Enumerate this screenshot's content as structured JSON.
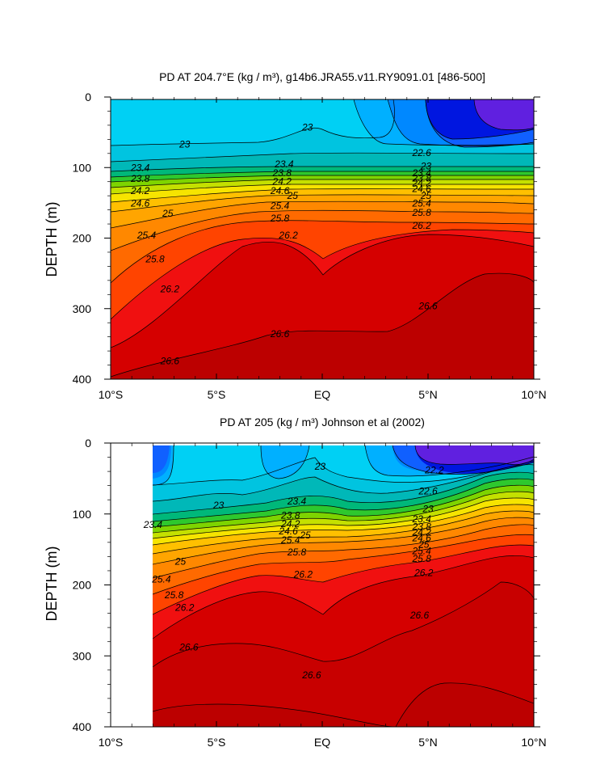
{
  "chart_data": [
    {
      "type": "contour",
      "title": "PD AT 204.7°E (kg / m³), g14b6.JRA55.v11.RY9091.01 [486-500]",
      "ylabel": "DEPTH (m)",
      "xlabel": "",
      "xlim": [
        -10,
        10
      ],
      "ylim": [
        400,
        0
      ],
      "x_ticks": [
        "10°S",
        "5°S",
        "EQ",
        "5°N",
        "10°N"
      ],
      "x_tick_values": [
        -10,
        -5,
        0,
        5,
        10
      ],
      "y_ticks": [
        "0",
        "100",
        "200",
        "300",
        "400"
      ],
      "y_tick_values": [
        0,
        100,
        200,
        300,
        400
      ],
      "data_x_start": -10,
      "contour_levels": [
        22.2,
        22.6,
        23,
        23.4,
        23.8,
        24.2,
        24.6,
        25,
        25.4,
        25.8,
        26.2,
        26.6
      ],
      "contour_labels": [
        {
          "text": "23",
          "x": -6.5,
          "y": 67
        },
        {
          "text": "23.4",
          "x": -8.6,
          "y": 100
        },
        {
          "text": "23.8",
          "x": -8.6,
          "y": 116
        },
        {
          "text": "24.2",
          "x": -8.6,
          "y": 133
        },
        {
          "text": "24.6",
          "x": -8.6,
          "y": 151
        },
        {
          "text": "25",
          "x": -7.3,
          "y": 165
        },
        {
          "text": "25.4",
          "x": -8.3,
          "y": 196
        },
        {
          "text": "25.8",
          "x": -7.9,
          "y": 230
        },
        {
          "text": "26.2",
          "x": -7.2,
          "y": 272
        },
        {
          "text": "26.6",
          "x": -7.2,
          "y": 374
        },
        {
          "text": "23",
          "x": -0.7,
          "y": 43
        },
        {
          "text": "23.4",
          "x": -1.8,
          "y": 95
        },
        {
          "text": "23.8",
          "x": -1.9,
          "y": 108
        },
        {
          "text": "24.2",
          "x": -1.9,
          "y": 120
        },
        {
          "text": "24.6",
          "x": -2.0,
          "y": 133
        },
        {
          "text": "25",
          "x": -1.4,
          "y": 140
        },
        {
          "text": "25.4",
          "x": -2.0,
          "y": 154
        },
        {
          "text": "25.8",
          "x": -2.0,
          "y": 172
        },
        {
          "text": "26.2",
          "x": -1.6,
          "y": 196
        },
        {
          "text": "26.6",
          "x": -2.0,
          "y": 336
        },
        {
          "text": "22.6",
          "x": 4.7,
          "y": 79
        },
        {
          "text": "23",
          "x": 4.9,
          "y": 98
        },
        {
          "text": "23.4",
          "x": 4.7,
          "y": 108
        },
        {
          "text": "23.8",
          "x": 4.7,
          "y": 115
        },
        {
          "text": "24.2",
          "x": 4.7,
          "y": 122
        },
        {
          "text": "24.6",
          "x": 4.7,
          "y": 130
        },
        {
          "text": "25",
          "x": 4.9,
          "y": 140
        },
        {
          "text": "25.4",
          "x": 4.7,
          "y": 151
        },
        {
          "text": "25.8",
          "x": 4.7,
          "y": 164
        },
        {
          "text": "26.2",
          "x": 4.7,
          "y": 182
        },
        {
          "text": "26.6",
          "x": 5.0,
          "y": 296
        }
      ]
    },
    {
      "type": "contour",
      "title": "PD AT 205 (kg / m³) Johnson et al (2002)",
      "ylabel": "DEPTH (m)",
      "xlabel": "",
      "xlim": [
        -10,
        10
      ],
      "ylim": [
        400,
        0
      ],
      "x_ticks": [
        "10°S",
        "5°S",
        "EQ",
        "5°N",
        "10°N"
      ],
      "x_tick_values": [
        -10,
        -5,
        0,
        5,
        10
      ],
      "y_ticks": [
        "0",
        "100",
        "200",
        "300",
        "400"
      ],
      "y_tick_values": [
        0,
        100,
        200,
        300,
        400
      ],
      "data_x_start": -8,
      "contour_levels": [
        22.2,
        22.6,
        23,
        23.4,
        23.8,
        24.2,
        24.6,
        25,
        25.4,
        25.8,
        26.2,
        26.6
      ],
      "contour_labels": [
        {
          "text": "22.2",
          "x": 5.3,
          "y": 38
        },
        {
          "text": "22.6",
          "x": 5.0,
          "y": 68
        },
        {
          "text": "23",
          "x": -0.1,
          "y": 33
        },
        {
          "text": "23",
          "x": -4.9,
          "y": 88
        },
        {
          "text": "23",
          "x": 5.0,
          "y": 93
        },
        {
          "text": "23.4",
          "x": -8.0,
          "y": 115
        },
        {
          "text": "23.4",
          "x": -1.2,
          "y": 82
        },
        {
          "text": "23.4",
          "x": 4.7,
          "y": 107
        },
        {
          "text": "23.8",
          "x": -1.5,
          "y": 102
        },
        {
          "text": "23.8",
          "x": 4.7,
          "y": 118
        },
        {
          "text": "24.2",
          "x": -1.5,
          "y": 114
        },
        {
          "text": "24.2",
          "x": 4.7,
          "y": 126
        },
        {
          "text": "24.6",
          "x": -1.6,
          "y": 124
        },
        {
          "text": "24.6",
          "x": 4.7,
          "y": 134
        },
        {
          "text": "25",
          "x": -0.8,
          "y": 130
        },
        {
          "text": "25",
          "x": -6.7,
          "y": 167
        },
        {
          "text": "25",
          "x": 4.8,
          "y": 143
        },
        {
          "text": "25.4",
          "x": -1.5,
          "y": 137
        },
        {
          "text": "25.4",
          "x": -7.6,
          "y": 192
        },
        {
          "text": "25.4",
          "x": 4.7,
          "y": 152
        },
        {
          "text": "25.8",
          "x": -1.2,
          "y": 154
        },
        {
          "text": "25.8",
          "x": -7.0,
          "y": 214
        },
        {
          "text": "25.8",
          "x": 4.7,
          "y": 163
        },
        {
          "text": "26.2",
          "x": -0.9,
          "y": 185
        },
        {
          "text": "26.2",
          "x": -6.5,
          "y": 232
        },
        {
          "text": "26.2",
          "x": 4.8,
          "y": 183
        },
        {
          "text": "26.6",
          "x": -6.3,
          "y": 288
        },
        {
          "text": "26.6",
          "x": -0.5,
          "y": 327
        },
        {
          "text": "26.6",
          "x": 4.6,
          "y": 243
        }
      ]
    }
  ]
}
